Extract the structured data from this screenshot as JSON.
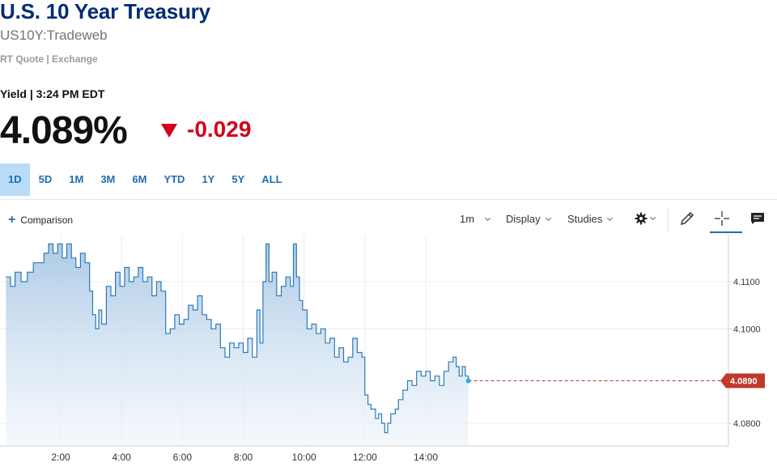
{
  "header": {
    "title": "U.S. 10 Year Treasury",
    "subtitle": "US10Y:Tradeweb",
    "quote_type": "RT Quote | Exchange"
  },
  "quote": {
    "label": "Yield | 3:24 PM EDT",
    "price": "4.089%",
    "change": "-0.029",
    "change_color": "#d0021b"
  },
  "ranges": [
    "1D",
    "5D",
    "1M",
    "3M",
    "6M",
    "YTD",
    "1Y",
    "5Y",
    "ALL"
  ],
  "active_range": "1D",
  "toolbar": {
    "comparison_label": "Comparison",
    "interval_label": "1m",
    "display_label": "Display",
    "studies_label": "Studies",
    "icons": [
      "gear-icon",
      "pencil-icon",
      "crosshair-icon",
      "comment-icon"
    ]
  },
  "chart_data": {
    "type": "area",
    "x_unit": "hour",
    "x_range": [
      0.2,
      15.5
    ],
    "y_range": [
      4.0765,
      4.1195
    ],
    "x_ticks": [
      {
        "value": 2,
        "label": "2:00"
      },
      {
        "value": 4,
        "label": "4:00"
      },
      {
        "value": 6,
        "label": "6:00"
      },
      {
        "value": 8,
        "label": "8:00"
      },
      {
        "value": 10,
        "label": "10:00"
      },
      {
        "value": 12,
        "label": "12:00"
      },
      {
        "value": 14,
        "label": "14:00"
      }
    ],
    "y_ticks": [
      {
        "value": 4.08,
        "label": "4.0800"
      },
      {
        "value": 4.1,
        "label": "4.1000"
      },
      {
        "value": 4.11,
        "label": "4.1100"
      }
    ],
    "last_value": 4.089,
    "last_label": "4.0890",
    "line_color": "#2a7ab8",
    "last_badge_color": "#c0392b",
    "points": [
      [
        0.2,
        4.111
      ],
      [
        0.35,
        4.109
      ],
      [
        0.5,
        4.112
      ],
      [
        0.7,
        4.11
      ],
      [
        0.9,
        4.112
      ],
      [
        1.1,
        4.114
      ],
      [
        1.3,
        4.114
      ],
      [
        1.45,
        4.116
      ],
      [
        1.6,
        4.118
      ],
      [
        1.75,
        4.116
      ],
      [
        1.9,
        4.118
      ],
      [
        2.05,
        4.115
      ],
      [
        2.2,
        4.118
      ],
      [
        2.35,
        4.115
      ],
      [
        2.5,
        4.113
      ],
      [
        2.65,
        4.116
      ],
      [
        2.8,
        4.114
      ],
      [
        2.95,
        4.108
      ],
      [
        3.05,
        4.103
      ],
      [
        3.15,
        4.1
      ],
      [
        3.25,
        4.104
      ],
      [
        3.35,
        4.101
      ],
      [
        3.5,
        4.109
      ],
      [
        3.65,
        4.107
      ],
      [
        3.8,
        4.112
      ],
      [
        3.95,
        4.109
      ],
      [
        4.1,
        4.113
      ],
      [
        4.25,
        4.11
      ],
      [
        4.4,
        4.111
      ],
      [
        4.55,
        4.113
      ],
      [
        4.7,
        4.11
      ],
      [
        4.85,
        4.111
      ],
      [
        5.0,
        4.107
      ],
      [
        5.15,
        4.11
      ],
      [
        5.3,
        4.108
      ],
      [
        5.45,
        4.099
      ],
      [
        5.6,
        4.1
      ],
      [
        5.75,
        4.103
      ],
      [
        5.9,
        4.101
      ],
      [
        6.05,
        4.102
      ],
      [
        6.2,
        4.105
      ],
      [
        6.35,
        4.104
      ],
      [
        6.5,
        4.107
      ],
      [
        6.65,
        4.103
      ],
      [
        6.8,
        4.102
      ],
      [
        6.95,
        4.1
      ],
      [
        7.1,
        4.101
      ],
      [
        7.25,
        4.096
      ],
      [
        7.4,
        4.094
      ],
      [
        7.55,
        4.097
      ],
      [
        7.7,
        4.096
      ],
      [
        7.85,
        4.097
      ],
      [
        8.0,
        4.095
      ],
      [
        8.15,
        4.098
      ],
      [
        8.3,
        4.094
      ],
      [
        8.45,
        4.104
      ],
      [
        8.55,
        4.097
      ],
      [
        8.65,
        4.11
      ],
      [
        8.75,
        4.118
      ],
      [
        8.85,
        4.11
      ],
      [
        8.95,
        4.112
      ],
      [
        9.1,
        4.107
      ],
      [
        9.25,
        4.109
      ],
      [
        9.4,
        4.111
      ],
      [
        9.55,
        4.109
      ],
      [
        9.65,
        4.118
      ],
      [
        9.75,
        4.111
      ],
      [
        9.85,
        4.106
      ],
      [
        9.95,
        4.104
      ],
      [
        10.1,
        4.1
      ],
      [
        10.25,
        4.101
      ],
      [
        10.4,
        4.099
      ],
      [
        10.55,
        4.1
      ],
      [
        10.7,
        4.097
      ],
      [
        10.85,
        4.098
      ],
      [
        11.0,
        4.094
      ],
      [
        11.15,
        4.096
      ],
      [
        11.3,
        4.093
      ],
      [
        11.45,
        4.094
      ],
      [
        11.6,
        4.098
      ],
      [
        11.75,
        4.095
      ],
      [
        11.9,
        4.094
      ],
      [
        12.0,
        4.086
      ],
      [
        12.1,
        4.084
      ],
      [
        12.2,
        4.083
      ],
      [
        12.35,
        4.081
      ],
      [
        12.45,
        4.082
      ],
      [
        12.55,
        4.08
      ],
      [
        12.65,
        4.078
      ],
      [
        12.75,
        4.08
      ],
      [
        12.85,
        4.082
      ],
      [
        13.0,
        4.083
      ],
      [
        13.1,
        4.085
      ],
      [
        13.25,
        4.087
      ],
      [
        13.4,
        4.089
      ],
      [
        13.55,
        4.088
      ],
      [
        13.7,
        4.091
      ],
      [
        13.85,
        4.09
      ],
      [
        14.0,
        4.091
      ],
      [
        14.15,
        4.089
      ],
      [
        14.3,
        4.09
      ],
      [
        14.45,
        4.088
      ],
      [
        14.6,
        4.091
      ],
      [
        14.75,
        4.093
      ],
      [
        14.9,
        4.094
      ],
      [
        15.0,
        4.092
      ],
      [
        15.1,
        4.09
      ],
      [
        15.2,
        4.092
      ],
      [
        15.3,
        4.09
      ],
      [
        15.4,
        4.089
      ]
    ]
  }
}
